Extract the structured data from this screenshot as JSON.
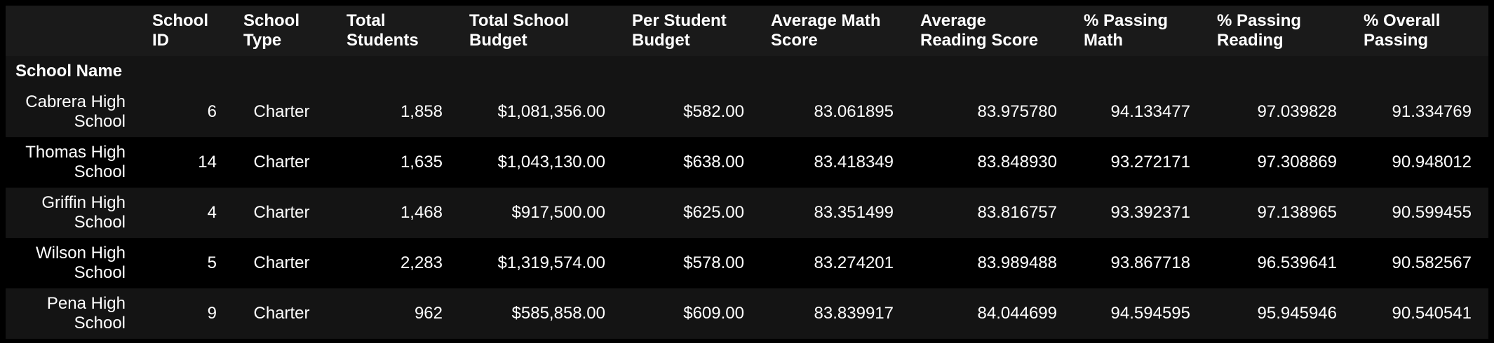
{
  "table": {
    "columns": [
      "School ID",
      "School Type",
      "Total Students",
      "Total School Budget",
      "Per Student Budget",
      "Average Math Score",
      "Average Reading Score",
      "% Passing Math",
      "% Passing Reading",
      "% Overall Passing"
    ],
    "index_name": "School Name",
    "rows": [
      {
        "name": "Cabrera High School",
        "school_id": "6",
        "school_type": "Charter",
        "total_students": "1,858",
        "total_budget": "$1,081,356.00",
        "per_student_budget": "$582.00",
        "avg_math": "83.061895",
        "avg_reading": "83.975780",
        "pct_math": "94.133477",
        "pct_reading": "97.039828",
        "pct_overall": "91.334769"
      },
      {
        "name": "Thomas High School",
        "school_id": "14",
        "school_type": "Charter",
        "total_students": "1,635",
        "total_budget": "$1,043,130.00",
        "per_student_budget": "$638.00",
        "avg_math": "83.418349",
        "avg_reading": "83.848930",
        "pct_math": "93.272171",
        "pct_reading": "97.308869",
        "pct_overall": "90.948012"
      },
      {
        "name": "Griffin High School",
        "school_id": "4",
        "school_type": "Charter",
        "total_students": "1,468",
        "total_budget": "$917,500.00",
        "per_student_budget": "$625.00",
        "avg_math": "83.351499",
        "avg_reading": "83.816757",
        "pct_math": "93.392371",
        "pct_reading": "97.138965",
        "pct_overall": "90.599455"
      },
      {
        "name": "Wilson High School",
        "school_id": "5",
        "school_type": "Charter",
        "total_students": "2,283",
        "total_budget": "$1,319,574.00",
        "per_student_budget": "$578.00",
        "avg_math": "83.274201",
        "avg_reading": "83.989488",
        "pct_math": "93.867718",
        "pct_reading": "96.539641",
        "pct_overall": "90.582567"
      },
      {
        "name": "Pena High School",
        "school_id": "9",
        "school_type": "Charter",
        "total_students": "962",
        "total_budget": "$585,858.00",
        "per_student_budget": "$609.00",
        "avg_math": "83.839917",
        "avg_reading": "84.044699",
        "pct_math": "94.594595",
        "pct_reading": "95.945946",
        "pct_overall": "90.540541"
      }
    ]
  }
}
